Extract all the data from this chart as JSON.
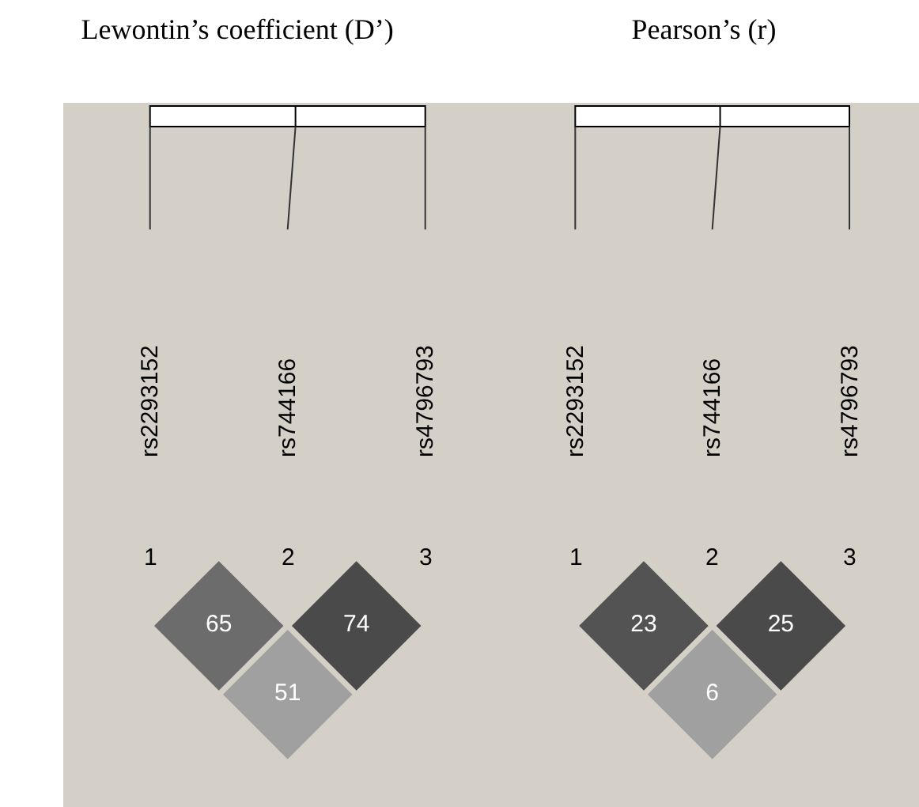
{
  "chart_data": [
    {
      "type": "other",
      "title": "Lewontin’s coefficient (D’)",
      "values": [
        65,
        74,
        51
      ],
      "data_labels": true,
      "annotations": [
        "rs2293152",
        "rs744166",
        "rs4796793",
        "1",
        "2",
        "3"
      ]
    },
    {
      "type": "other",
      "title": "Pearson’s (r)",
      "values": [
        23,
        25,
        6
      ],
      "data_labels": true,
      "annotations": [
        "rs2293152",
        "rs744166",
        "rs4796793",
        "1",
        "2",
        "3"
      ]
    }
  ]
}
